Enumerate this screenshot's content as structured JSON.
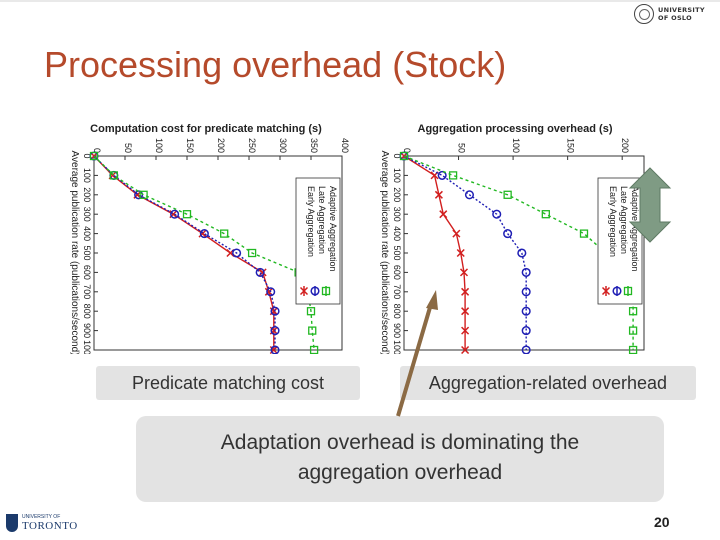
{
  "header": {
    "logo_line1": "UNIVERSITY",
    "logo_line2": "OF OSLO"
  },
  "slide": {
    "title": "Processing overhead (Stock)",
    "page_number": "20",
    "label_left": "Predicate matching cost",
    "label_right": "Aggregation-related overhead",
    "callout_line1": "Adaptation overhead is dominating the",
    "callout_line2": "aggregation overhead"
  },
  "footer": {
    "logo_small": "UNIVERSITY OF",
    "logo_big": "TORONTO"
  },
  "colors": {
    "title": "#b54a2b",
    "early": "#d21f1f",
    "late": "#1f1fb4",
    "adaptive": "#22b822",
    "arrow_brown": "#8b6a44",
    "double_arrow": "#7f9b84"
  },
  "chart_data": [
    {
      "type": "line",
      "title": "Computation cost for predicate matching (s)",
      "xlabel": "Average publication rate (publications/second)",
      "ylabel": "",
      "orientation": "rotated 90 degrees clockwise",
      "x": [
        0,
        100,
        200,
        300,
        400,
        500,
        600,
        700,
        800,
        900,
        1000
      ],
      "x_ticks": [
        "0",
        "100",
        "200",
        "300",
        "400",
        "500",
        "600",
        "700",
        "800",
        "900",
        "1000"
      ],
      "y_ticks": [
        "0",
        "50",
        "100",
        "150",
        "200",
        "250",
        "300",
        "350",
        "400"
      ],
      "ylim": [
        0,
        400
      ],
      "legend": "top-right",
      "series": [
        {
          "name": "Early Aggregation",
          "values": [
            0,
            30,
            70,
            128,
            175,
            220,
            272,
            282,
            290,
            290,
            290
          ]
        },
        {
          "name": "Late Aggregation",
          "values": [
            0,
            32,
            72,
            130,
            178,
            230,
            268,
            285,
            292,
            292,
            292
          ]
        },
        {
          "name": "Adaptive Aggregation",
          "values": [
            0,
            32,
            80,
            150,
            210,
            255,
            330,
            345,
            350,
            352,
            355
          ]
        }
      ]
    },
    {
      "type": "line",
      "title": "Aggregation processing overhead (s)",
      "xlabel": "Average publication rate (publications/second)",
      "ylabel": "",
      "orientation": "rotated 90 degrees clockwise",
      "x": [
        0,
        100,
        200,
        300,
        400,
        500,
        600,
        700,
        800,
        900,
        1000
      ],
      "x_ticks": [
        "0",
        "100",
        "200",
        "300",
        "400",
        "500",
        "600",
        "700",
        "800",
        "900",
        "1000"
      ],
      "y_ticks": [
        "0",
        "50",
        "100",
        "150",
        "200"
      ],
      "ylim": [
        0,
        220
      ],
      "legend": "top-right",
      "series": [
        {
          "name": "Early Aggregation",
          "values": [
            0,
            28,
            32,
            36,
            48,
            52,
            55,
            56,
            56,
            56,
            56
          ]
        },
        {
          "name": "Late Aggregation",
          "values": [
            0,
            35,
            60,
            85,
            95,
            108,
            112,
            112,
            112,
            112,
            112
          ]
        },
        {
          "name": "Adaptive Aggregation",
          "values": [
            0,
            45,
            95,
            130,
            165,
            185,
            200,
            210,
            210,
            210,
            210
          ]
        }
      ]
    }
  ]
}
